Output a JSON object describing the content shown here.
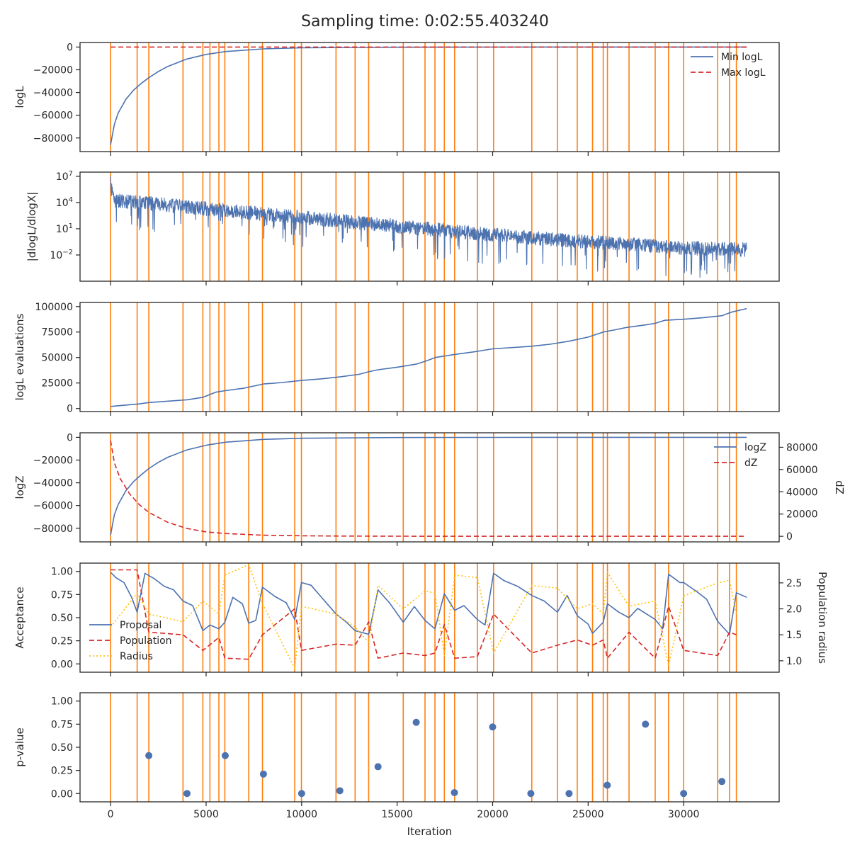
{
  "figure": {
    "title": "Sampling time: 0:02:55.403240"
  },
  "colors": {
    "blue": "#4c72b0",
    "red": "#d62728",
    "orange": "#ff7f0e",
    "gold": "#ffc107",
    "axis": "#262626"
  },
  "chart_data": {
    "type": "line",
    "shared_x": {
      "label": "Iteration",
      "lim": [
        -1600,
        35000
      ],
      "ticks": [
        0,
        5000,
        10000,
        15000,
        20000,
        25000,
        30000
      ]
    },
    "vlines": [
      0,
      1390,
      2000,
      3790,
      4830,
      5200,
      5670,
      5980,
      7230,
      7950,
      9640,
      9990,
      11800,
      12800,
      13510,
      15320,
      16460,
      16980,
      17470,
      18010,
      19200,
      20050,
      22050,
      23390,
      24430,
      25230,
      25790,
      26010,
      27140,
      28510,
      29210,
      30000,
      31780,
      32400,
      32760
    ],
    "panels": [
      {
        "id": "logL",
        "type": "line",
        "ylabel": "logL",
        "ylim": [
          -92000,
          4000
        ],
        "yticks": [
          0,
          -20000,
          -40000,
          -60000,
          -80000
        ],
        "ytick_labels": [
          "0",
          "−20000",
          "−40000",
          "−60000",
          "−80000"
        ],
        "legend": [
          "Min logL",
          "Max logL"
        ],
        "legend_position": "top-right",
        "series": [
          {
            "name": "Min logL",
            "style": "solid",
            "color": "#4c72b0",
            "x": [
              0,
              200,
              400,
              800,
              1200,
              1600,
              2000,
              2500,
              3000,
              4000,
              5000,
              6000,
              8000,
              10000,
              15000,
              20000,
              33300
            ],
            "y": [
              -86000,
              -68000,
              -58000,
              -46000,
              -38000,
              -32000,
              -27000,
              -21500,
              -17000,
              -10500,
              -6500,
              -4000,
              -1600,
              -700,
              -150,
              -30,
              0
            ]
          },
          {
            "name": "Max logL",
            "style": "dashed",
            "color": "#d62728",
            "x": [
              0,
              33300
            ],
            "y": [
              0,
              0
            ]
          }
        ]
      },
      {
        "id": "dlogL",
        "type": "line",
        "ylabel": "|dlogL/dlogX|",
        "yscale": "log",
        "ylim": [
          1e-05,
          30000000.0
        ],
        "yticks": [
          10000000.0,
          10000.0,
          10,
          0.01
        ],
        "ytick_labels": [
          "10⁷",
          "10⁴",
          "10¹",
          "10⁻²"
        ],
        "series": [
          {
            "name": "",
            "style": "solid",
            "color": "#4c72b0",
            "trend_x": [
              0,
              5000,
              10000,
              15000,
              20000,
              25000,
              30000,
              33300
            ],
            "trend_log10_y": [
              4.3,
              3.3,
              2.3,
              1.3,
              0.3,
              -0.5,
              -1.2,
              -1.4
            ]
          }
        ]
      },
      {
        "id": "evals",
        "type": "line",
        "ylabel": "logL evaluations",
        "ylim": [
          -3000,
          104000
        ],
        "yticks": [
          0,
          25000,
          50000,
          75000,
          100000
        ],
        "ytick_labels": [
          "0",
          "25000",
          "50000",
          "75000",
          "100000"
        ],
        "series": [
          {
            "name": "",
            "style": "solid",
            "color": "#4c72b0",
            "x": [
              0,
              1500,
              2000,
              4000,
              4830,
              5500,
              6000,
              7000,
              8000,
              9000,
              10000,
              11000,
              12000,
              13000,
              13500,
              14000,
              15000,
              16000,
              16500,
              17000,
              17500,
              18000,
              19000,
              20000,
              22000,
              23000,
              24000,
              25000,
              25800,
              26500,
              27000,
              28000,
              28500,
              29000,
              30000,
              31000,
              32000,
              32500,
              33300
            ],
            "y": [
              2000,
              4500,
              5800,
              8500,
              11000,
              16000,
              17500,
              20000,
              24000,
              25500,
              27500,
              29000,
              31000,
              33500,
              36000,
              38000,
              40500,
              43500,
              46500,
              50000,
              51500,
              53000,
              55500,
              58500,
              61000,
              63000,
              66000,
              70000,
              75000,
              77500,
              79500,
              82000,
              83500,
              86500,
              87500,
              89000,
              91000,
              94500,
              98000
            ]
          }
        ]
      },
      {
        "id": "logZ",
        "type": "line",
        "ylabel": "logZ",
        "ylabel2": "dZ",
        "ylim": [
          -92000,
          4000
        ],
        "yticks": [
          0,
          -20000,
          -40000,
          -60000,
          -80000
        ],
        "ytick_labels": [
          "0",
          "−20000",
          "−40000",
          "−60000",
          "−80000"
        ],
        "y2lim": [
          -5000,
          93000
        ],
        "y2ticks": [
          0,
          20000,
          40000,
          60000,
          80000
        ],
        "y2tick_labels": [
          "0",
          "20000",
          "40000",
          "60000",
          "80000"
        ],
        "legend": [
          "logZ",
          "dZ"
        ],
        "legend_position": "top-right",
        "series": [
          {
            "name": "logZ",
            "axis": "left",
            "style": "solid",
            "color": "#4c72b0",
            "x": [
              0,
              200,
              400,
              800,
              1200,
              1600,
              2000,
              2500,
              3000,
              4000,
              5000,
              6000,
              8000,
              10000,
              15000,
              20000,
              33300
            ],
            "y": [
              -86000,
              -68000,
              -59000,
              -47000,
              -39000,
              -33000,
              -27500,
              -22000,
              -17500,
              -11000,
              -7000,
              -4300,
              -1800,
              -800,
              -200,
              -40,
              0
            ]
          },
          {
            "name": "dZ",
            "axis": "right",
            "style": "dashed",
            "color": "#d62728",
            "x": [
              0,
              200,
              500,
              1000,
              1500,
              2000,
              3000,
              4000,
              5000,
              6000,
              8000,
              10000,
              12000,
              15000,
              20000,
              33300
            ],
            "y": [
              86000,
              66000,
              52000,
              38000,
              28500,
              21500,
              12500,
              7000,
              4000,
              2500,
              1000,
              500,
              200,
              60,
              10,
              0
            ]
          }
        ]
      },
      {
        "id": "acceptance",
        "type": "line",
        "ylabel": "Acceptance",
        "ylabel2": "Population radius",
        "ylim": [
          -0.09,
          1.09
        ],
        "yticks": [
          0,
          0.25,
          0.5,
          0.75,
          1.0
        ],
        "ytick_labels": [
          "0.00",
          "0.25",
          "0.50",
          "0.75",
          "1.00"
        ],
        "y2lim": [
          0.78,
          2.88
        ],
        "y2ticks": [
          1.0,
          1.5,
          2.0,
          2.5
        ],
        "y2tick_labels": [
          "1.0",
          "1.5",
          "2.0",
          "2.5"
        ],
        "legend": [
          "Proposal",
          "Population",
          "Radius"
        ],
        "legend_position": "center-left",
        "series": [
          {
            "name": "Proposal",
            "axis": "left",
            "style": "solid",
            "color": "#4c72b0",
            "x": [
              0,
              300,
              700,
              1100,
              1390,
              1800,
              2300,
              2800,
              3300,
              3790,
              4300,
              4830,
              5200,
              5670,
              5980,
              6400,
              6900,
              7230,
              7600,
              7950,
              8600,
              9200,
              9640,
              9990,
              10500,
              11000,
              11800,
              12300,
              12800,
              13510,
              14000,
              14600,
              15320,
              15900,
              16460,
              16980,
              17470,
              18010,
              18500,
              19200,
              19600,
              20050,
              20600,
              21300,
              22050,
              22700,
              23390,
              23900,
              24430,
              25000,
              25230,
              25790,
              26010,
              26600,
              27140,
              27600,
              28510,
              28900,
              29210,
              29800,
              30000,
              30700,
              31200,
              31780,
              32400,
              32760,
              33300
            ],
            "y": [
              0.99,
              0.93,
              0.88,
              0.72,
              0.56,
              0.98,
              0.92,
              0.84,
              0.8,
              0.68,
              0.63,
              0.36,
              0.42,
              0.38,
              0.45,
              0.72,
              0.65,
              0.44,
              0.47,
              0.83,
              0.73,
              0.66,
              0.48,
              0.88,
              0.85,
              0.73,
              0.54,
              0.46,
              0.36,
              0.32,
              0.8,
              0.66,
              0.45,
              0.62,
              0.47,
              0.38,
              0.76,
              0.58,
              0.63,
              0.48,
              0.42,
              0.98,
              0.9,
              0.84,
              0.74,
              0.68,
              0.56,
              0.74,
              0.52,
              0.43,
              0.33,
              0.45,
              0.65,
              0.56,
              0.5,
              0.6,
              0.48,
              0.38,
              0.97,
              0.88,
              0.88,
              0.78,
              0.7,
              0.46,
              0.32,
              0.77,
              0.72
            ]
          },
          {
            "name": "Population",
            "axis": "right",
            "style": "dashed",
            "color": "#d62728",
            "x": [
              0,
              1390,
              2000,
              3790,
              4830,
              5670,
              5980,
              7230,
              7950,
              9640,
              9990,
              11800,
              12800,
              13510,
              14000,
              15320,
              16460,
              16980,
              17470,
              18010,
              19200,
              20050,
              22050,
              23390,
              24430,
              25230,
              25790,
              26010,
              27140,
              28510,
              29210,
              30000,
              31780,
              32400,
              32760
            ],
            "y": [
              2.75,
              2.75,
              1.55,
              1.5,
              1.2,
              1.45,
              1.05,
              1.03,
              1.5,
              2.0,
              1.2,
              1.32,
              1.3,
              1.75,
              1.05,
              1.15,
              1.1,
              1.15,
              1.7,
              1.05,
              1.08,
              1.9,
              1.15,
              1.3,
              1.4,
              1.3,
              1.4,
              1.05,
              1.55,
              1.05,
              2.05,
              1.2,
              1.1,
              1.55,
              1.5
            ]
          },
          {
            "name": "Radius",
            "axis": "right",
            "style": "dotted",
            "color": "#ffc107",
            "x": [
              0,
              1390,
              2000,
              3790,
              4830,
              5670,
              5980,
              7230,
              7950,
              9640,
              9990,
              11800,
              12800,
              13510,
              14000,
              15320,
              16460,
              16980,
              17470,
              18010,
              19200,
              20050,
              22050,
              23390,
              24430,
              25230,
              25790,
              26010,
              27140,
              28510,
              29210,
              30000,
              31780,
              32400,
              32760
            ],
            "y": [
              1.65,
              2.3,
              1.9,
              1.75,
              2.15,
              1.9,
              2.65,
              2.85,
              2.1,
              0.85,
              2.05,
              1.9,
              1.65,
              1.35,
              2.45,
              2.0,
              2.35,
              2.3,
              1.1,
              2.65,
              2.6,
              1.15,
              2.45,
              2.4,
              2.0,
              2.1,
              1.9,
              2.7,
              2.05,
              2.15,
              0.9,
              2.25,
              2.5,
              2.55,
              1.9
            ]
          }
        ]
      },
      {
        "id": "pvalue",
        "type": "scatter",
        "ylabel": "p-value",
        "ylim": [
          -0.09,
          1.09
        ],
        "yticks": [
          0,
          0.25,
          0.5,
          0.75,
          1.0
        ],
        "ytick_labels": [
          "0.00",
          "0.25",
          "0.50",
          "0.75",
          "1.00"
        ],
        "series": [
          {
            "name": "",
            "color": "#4c72b0",
            "x": [
              2000,
              4000,
              6000,
              8000,
              10000,
              12000,
              14000,
              16000,
              18000,
              20000,
              22000,
              24000,
              26000,
              28000,
              30000,
              32000
            ],
            "y": [
              0.41,
              0.0,
              0.41,
              0.21,
              0.0,
              0.03,
              0.29,
              0.77,
              0.01,
              0.72,
              0.0,
              0.0,
              0.09,
              0.75,
              0.0,
              0.13
            ]
          }
        ]
      }
    ]
  }
}
